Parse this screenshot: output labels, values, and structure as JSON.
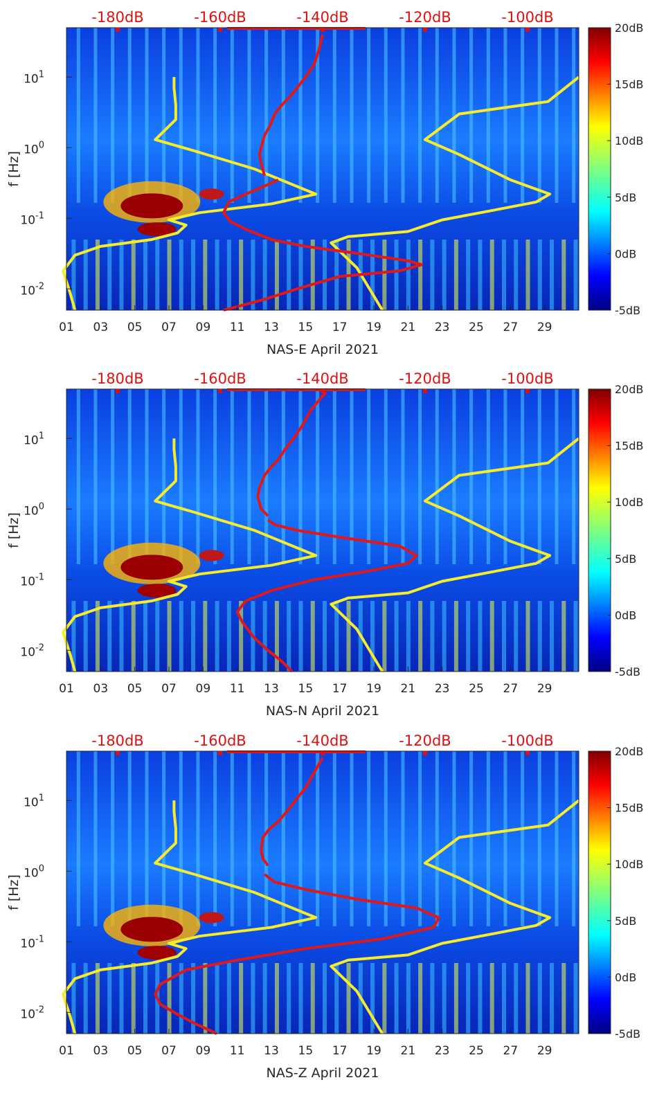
{
  "figure": {
    "top_axis_labels": [
      "-180dB",
      "-160dB",
      "-140dB",
      "-120dB",
      "-100dB"
    ],
    "colorbar_labels": [
      "20dB",
      "15dB",
      "10dB",
      "5dB",
      "0dB",
      "-5dB"
    ],
    "x_tick_labels": [
      "01",
      "03",
      "05",
      "07",
      "09",
      "11",
      "13",
      "15",
      "17",
      "19",
      "21",
      "23",
      "25",
      "27",
      "29"
    ],
    "ylabel": "f [Hz]",
    "colors": {
      "yellow_curve": "#f6ec2c",
      "red_curve": "#e01818",
      "top_axis_text": "#e01010"
    }
  },
  "chart_data": [
    {
      "type": "heatmap",
      "xlabel": "NAS-E April 2021",
      "ylabel": "f [Hz]",
      "y_scale": "log",
      "ylim": [
        0.005,
        50
      ],
      "xlim": [
        1,
        31
      ],
      "y_ticks": [
        "10^{-2}",
        "10^{-1}",
        "10^{0}",
        "10^{1}"
      ],
      "colorbar": {
        "range_dB": [
          -5,
          20
        ],
        "ticks": [
          20,
          15,
          10,
          5,
          0,
          -5
        ],
        "colormap": "jet"
      },
      "top_axis": {
        "range_dB": [
          -190,
          -90
        ],
        "ticks": [
          -180,
          -160,
          -140,
          -120,
          -100
        ]
      },
      "grid": "off",
      "series": [
        {
          "kind": "yellow-pair",
          "curves": [
            {
              "x": [
                7.3,
                7.3,
                7.4,
                7.4,
                6.2,
                8.5,
                12.0,
                15.6,
                13.0,
                8.8,
                7.0,
                8.0,
                7.5,
                6.0,
                3.0,
                1.5,
                0.8,
                1.2,
                1.5
              ],
              "y": [
                10,
                7,
                4,
                2.5,
                1.3,
                0.9,
                0.5,
                0.22,
                0.16,
                0.12,
                0.095,
                0.08,
                0.062,
                0.05,
                0.04,
                0.03,
                0.018,
                0.009,
                0.005
              ]
            },
            {
              "x": [
                31.0,
                29.2,
                24.0,
                22.0,
                24.0,
                27.0,
                29.3,
                28.5,
                26.0,
                23.0,
                21.0,
                17.5,
                16.5,
                18.0,
                19.5
              ],
              "y": [
                10,
                4.5,
                3.0,
                1.3,
                0.8,
                0.35,
                0.22,
                0.17,
                0.13,
                0.095,
                0.065,
                0.055,
                0.045,
                0.02,
                0.005
              ]
            }
          ]
        },
        {
          "kind": "red-spectrum",
          "name": "",
          "x": [
            10.2,
            12.5,
            14.5,
            17.0,
            20.5,
            21.8,
            21.0,
            18.0,
            15.0,
            13.0,
            11.5,
            10.6,
            10.2,
            10.5,
            11.5,
            12.8,
            13.4
          ],
          "y": [
            0.005,
            0.007,
            0.01,
            0.015,
            0.018,
            0.022,
            0.025,
            0.032,
            0.04,
            0.05,
            0.07,
            0.09,
            0.12,
            0.17,
            0.22,
            0.3,
            0.35
          ]
        },
        {
          "kind": "red-upper",
          "x": [
            12.6,
            12.4,
            12.3,
            12.4,
            12.6,
            12.9,
            13.2,
            13.6,
            14.0,
            14.5,
            15.0,
            15.5,
            15.8,
            16.0
          ],
          "y": [
            0.4,
            0.6,
            0.8,
            1.0,
            1.5,
            2.0,
            3.0,
            4.0,
            5.0,
            7.0,
            10.0,
            15.0,
            25.0,
            40.0
          ]
        }
      ]
    },
    {
      "type": "heatmap",
      "xlabel": "NAS-N April 2021",
      "ylabel": "f [Hz]",
      "y_scale": "log",
      "ylim": [
        0.005,
        50
      ],
      "xlim": [
        1,
        31
      ],
      "y_ticks": [
        "10^{-2}",
        "10^{-1}",
        "10^{0}",
        "10^{1}"
      ],
      "colorbar": {
        "range_dB": [
          -5,
          20
        ],
        "ticks": [
          20,
          15,
          10,
          5,
          0,
          -5
        ],
        "colormap": "jet"
      },
      "top_axis": {
        "range_dB": [
          -190,
          -90
        ],
        "ticks": [
          -180,
          -160,
          -140,
          -120,
          -100
        ]
      },
      "grid": "off",
      "series": [
        {
          "kind": "yellow-pair",
          "curves": [
            {
              "x": [
                7.3,
                7.3,
                7.4,
                7.4,
                6.2,
                8.5,
                12.0,
                15.6,
                13.0,
                8.8,
                7.0,
                8.0,
                7.5,
                6.0,
                3.0,
                1.5,
                0.8,
                1.2,
                1.5
              ],
              "y": [
                10,
                7,
                4,
                2.5,
                1.3,
                0.9,
                0.5,
                0.22,
                0.16,
                0.12,
                0.095,
                0.08,
                0.062,
                0.05,
                0.04,
                0.03,
                0.018,
                0.009,
                0.005
              ]
            },
            {
              "x": [
                31.0,
                29.2,
                24.0,
                22.0,
                24.0,
                27.0,
                29.3,
                28.5,
                26.0,
                23.0,
                21.0,
                17.5,
                16.5,
                18.0,
                19.5
              ],
              "y": [
                10,
                4.5,
                3.0,
                1.3,
                0.8,
                0.35,
                0.22,
                0.17,
                0.13,
                0.095,
                0.065,
                0.055,
                0.045,
                0.02,
                0.005
              ]
            }
          ]
        },
        {
          "kind": "red-spectrum",
          "name": "",
          "x": [
            14.2,
            13.6,
            12.8,
            12.0,
            11.3,
            11.0,
            11.5,
            13.0,
            15.5,
            18.5,
            21.0,
            21.5,
            20.5,
            17.0,
            14.5,
            13.2,
            12.8
          ],
          "y": [
            0.005,
            0.007,
            0.01,
            0.015,
            0.025,
            0.035,
            0.05,
            0.07,
            0.1,
            0.13,
            0.17,
            0.22,
            0.3,
            0.4,
            0.5,
            0.6,
            0.7
          ]
        },
        {
          "kind": "red-upper",
          "x": [
            12.8,
            12.4,
            12.2,
            12.3,
            12.6,
            13.0,
            13.4,
            13.8,
            14.3,
            14.8,
            15.3,
            15.8,
            16.2
          ],
          "y": [
            0.8,
            1.0,
            1.5,
            2.0,
            3.0,
            4.0,
            5.0,
            7.0,
            10.0,
            15.0,
            25.0,
            35.0,
            45.0
          ]
        }
      ]
    },
    {
      "type": "heatmap",
      "xlabel": "NAS-Z April 2021",
      "ylabel": "f [Hz]",
      "y_scale": "log",
      "ylim": [
        0.005,
        50
      ],
      "xlim": [
        1,
        31
      ],
      "y_ticks": [
        "10^{-2}",
        "10^{-1}",
        "10^{0}",
        "10^{1}"
      ],
      "colorbar": {
        "range_dB": [
          -5,
          20
        ],
        "ticks": [
          20,
          15,
          10,
          5,
          0,
          -5
        ],
        "colormap": "jet"
      },
      "top_axis": {
        "range_dB": [
          -190,
          -90
        ],
        "ticks": [
          -180,
          -160,
          -140,
          -120,
          -100
        ]
      },
      "grid": "off",
      "series": [
        {
          "kind": "yellow-pair",
          "curves": [
            {
              "x": [
                7.3,
                7.3,
                7.4,
                7.4,
                6.2,
                8.5,
                12.0,
                15.6,
                13.0,
                8.8,
                7.0,
                8.0,
                7.5,
                6.0,
                3.0,
                1.5,
                0.8,
                1.2,
                1.5
              ],
              "y": [
                10,
                7,
                4,
                2.5,
                1.3,
                0.9,
                0.5,
                0.22,
                0.16,
                0.12,
                0.095,
                0.08,
                0.062,
                0.05,
                0.04,
                0.03,
                0.018,
                0.009,
                0.005
              ]
            },
            {
              "x": [
                31.0,
                29.2,
                24.0,
                22.0,
                24.0,
                27.0,
                29.3,
                28.5,
                26.0,
                23.0,
                21.0,
                17.5,
                16.5,
                18.0,
                19.5
              ],
              "y": [
                10,
                4.5,
                3.0,
                1.3,
                0.8,
                0.35,
                0.22,
                0.17,
                0.13,
                0.095,
                0.065,
                0.055,
                0.045,
                0.02,
                0.005
              ]
            }
          ]
        },
        {
          "kind": "red-spectrum",
          "name": "",
          "x": [
            9.8,
            8.5,
            7.3,
            6.5,
            6.2,
            6.5,
            8.0,
            11.0,
            15.0,
            19.5,
            22.5,
            22.8,
            21.5,
            18.0,
            15.0,
            13.2,
            12.6
          ],
          "y": [
            0.005,
            0.007,
            0.01,
            0.013,
            0.018,
            0.025,
            0.04,
            0.055,
            0.08,
            0.11,
            0.16,
            0.22,
            0.3,
            0.4,
            0.55,
            0.7,
            0.9
          ]
        },
        {
          "kind": "red-upper",
          "x": [
            12.8,
            12.5,
            12.4,
            12.5,
            12.9,
            13.4,
            13.9,
            14.4,
            15.0,
            15.5,
            16.0
          ],
          "y": [
            1.2,
            1.5,
            2.0,
            3.0,
            4.0,
            5.0,
            7.0,
            10.0,
            15.0,
            25.0,
            40.0
          ]
        }
      ]
    }
  ]
}
